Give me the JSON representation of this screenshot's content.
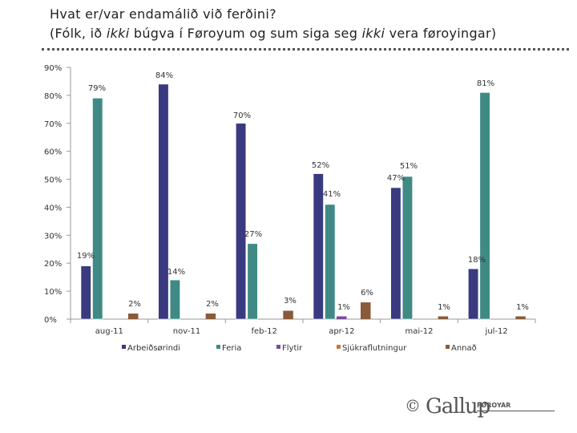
{
  "header": {
    "title_line1": "Hvat er/var endamálið við ferðini?",
    "title_line2_a": "(Fólk, ið ",
    "title_line2_b": "ikki",
    "title_line2_c": " búgva í Føroyum og sum siga seg ",
    "title_line2_d": "ikki",
    "title_line2_e": " vera føroyingar)"
  },
  "footer": {
    "copyright": "©",
    "brand": "Gallup",
    "brand_sub": "FØROYAR"
  },
  "colors": {
    "Arbeiðsørindi": "#3a3a80",
    "Feria": "#3f8a84",
    "Flytir": "#7a4a9a",
    "Sjúkraflutningur": "#c8783a",
    "Annað": "#8a5a3a"
  },
  "chart_data": {
    "type": "bar",
    "title": "Hvat er/var endamálið við ferðini?",
    "xlabel": "",
    "ylabel": "",
    "ylim": [
      0,
      90
    ],
    "yticks": [
      "0%",
      "10%",
      "20%",
      "30%",
      "40%",
      "50%",
      "60%",
      "70%",
      "80%",
      "90%"
    ],
    "categories": [
      "aug-11",
      "nov-11",
      "feb-12",
      "apr-12",
      "mai-12",
      "jul-12"
    ],
    "legend_position": "bottom",
    "series": [
      {
        "name": "Arbeiðsørindi",
        "values": [
          19,
          84,
          70,
          52,
          47,
          18
        ],
        "labels": [
          "19%",
          "84%",
          "70%",
          "52%",
          "47%",
          "18%"
        ]
      },
      {
        "name": "Feria",
        "values": [
          79,
          14,
          27,
          41,
          51,
          81
        ],
        "labels": [
          "79%",
          "14%",
          "27%",
          "41%",
          "51%",
          "81%"
        ]
      },
      {
        "name": "Flytir",
        "values": [
          0,
          0,
          0,
          1,
          0,
          0
        ],
        "labels": [
          "",
          "",
          "",
          "",
          "",
          ""
        ]
      },
      {
        "name": "Sjúkraflutningur",
        "values": [
          0,
          0,
          0,
          0,
          0,
          0
        ],
        "labels": [
          "",
          "",
          "",
          "",
          "",
          ""
        ]
      },
      {
        "name": "Annað",
        "values": [
          2,
          2,
          3,
          6,
          1,
          1
        ],
        "labels": [
          "2%",
          "2%",
          "3%",
          "6%",
          "1%",
          "1%"
        ]
      }
    ],
    "extra_labels": [
      "1%"
    ]
  }
}
